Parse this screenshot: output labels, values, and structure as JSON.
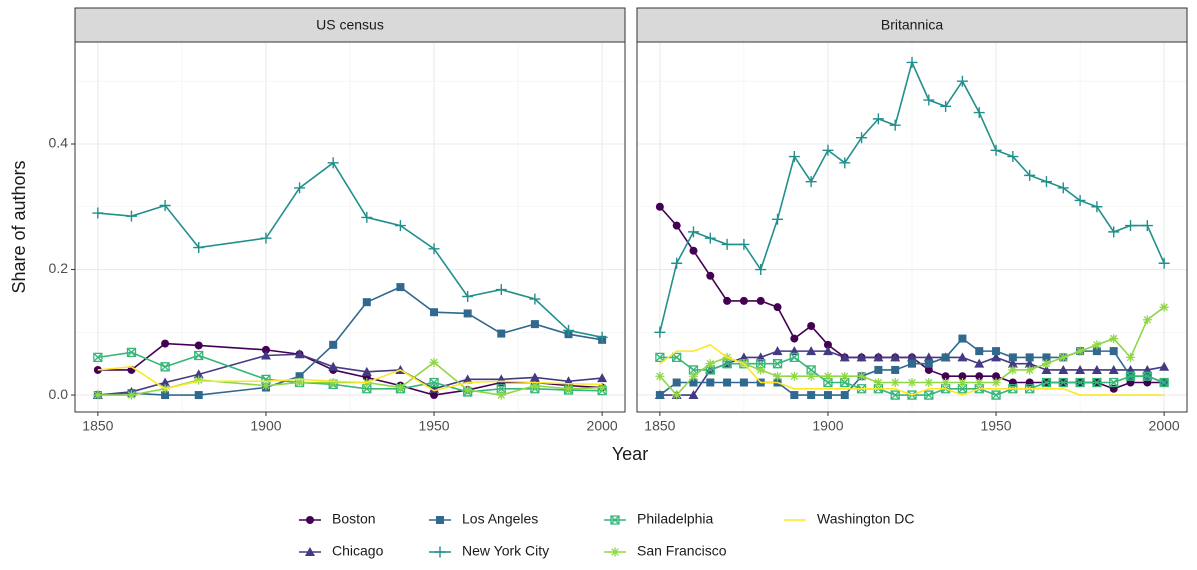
{
  "chart_data": {
    "type": "line",
    "xlabel": "Year",
    "ylabel": "Share of authors",
    "xlim": [
      1843.2,
      2006.8
    ],
    "ylim": [
      -0.027,
      0.5625
    ],
    "xticks": [
      1850,
      1900,
      1950,
      2000
    ],
    "xminorticks": [
      1875,
      1925,
      1975
    ],
    "yticks": [
      {
        "value": 0,
        "label": "0.0"
      },
      0.2,
      0.4
    ],
    "yminorticks": [
      0.1,
      0.3,
      0.5
    ],
    "grid": true,
    "legend": "bottom",
    "series": [
      {
        "name": "Boston",
        "color": "#440154",
        "marker": "circle"
      },
      {
        "name": "Chicago",
        "color": "#443a83",
        "marker": "triangle"
      },
      {
        "name": "Los Angeles",
        "color": "#31688e",
        "marker": "square"
      },
      {
        "name": "New York City",
        "color": "#21908c",
        "marker": "plus"
      },
      {
        "name": "Philadelphia",
        "color": "#35b779",
        "marker": "squarex"
      },
      {
        "name": "San Francisco",
        "color": "#8fd744",
        "marker": "asterisk"
      },
      {
        "name": "Washington DC",
        "color": "#fde725",
        "marker": "none"
      }
    ],
    "panels": [
      {
        "title": "US census",
        "x": [
          1850,
          1860,
          1870,
          1880,
          1900,
          1910,
          1920,
          1930,
          1940,
          1950,
          1960,
          1970,
          1980,
          1990,
          2000
        ],
        "values": [
          [
            0.04,
            0.04,
            0.082,
            0.079,
            0.072,
            0.065,
            0.04,
            0.028,
            0.015,
            0.0,
            0.008,
            0.02,
            0.02,
            0.015,
            0.012
          ],
          [
            0,
            0.005,
            0.02,
            0.033,
            0.063,
            0.065,
            0.045,
            0.037,
            0.04,
            0.01,
            0.025,
            0.025,
            0.028,
            0.022,
            0.027
          ],
          [
            0,
            0.003,
            0,
            0,
            0.012,
            0.03,
            0.08,
            0.148,
            0.172,
            0.132,
            0.13,
            0.098,
            0.113,
            0.097,
            0.088
          ],
          [
            0.29,
            0.285,
            0.302,
            0.235,
            0.25,
            0.33,
            0.37,
            0.283,
            0.27,
            0.233,
            0.157,
            0.168,
            0.153,
            0.103,
            0.092
          ],
          [
            0.06,
            0.068,
            0.045,
            0.063,
            0.025,
            0.02,
            0.017,
            0.01,
            0.01,
            0.02,
            0.005,
            0.01,
            0.01,
            0.008,
            0.007
          ],
          [
            0,
            0,
            0.01,
            0.024,
            0.015,
            0.02,
            0.02,
            0.02,
            0.012,
            0.052,
            0.008,
            0,
            0.015,
            0.01,
            0.012
          ],
          [
            0.04,
            0.045,
            0.01,
            0.022,
            0.022,
            0.025,
            0.022,
            0.02,
            0.04,
            0.007,
            0.02,
            0.022,
            0.02,
            0.018,
            0.017
          ]
        ]
      },
      {
        "title": "Britannica",
        "x": [
          1850,
          1855,
          1860,
          1865,
          1870,
          1875,
          1880,
          1885,
          1890,
          1895,
          1900,
          1905,
          1910,
          1915,
          1920,
          1925,
          1930,
          1935,
          1940,
          1945,
          1950,
          1955,
          1960,
          1965,
          1970,
          1975,
          1980,
          1985,
          1990,
          1995,
          2000
        ],
        "values": [
          [
            0.3,
            0.27,
            0.23,
            0.19,
            0.15,
            0.15,
            0.15,
            0.14,
            0.09,
            0.11,
            0.08,
            0.06,
            0.06,
            0.06,
            0.06,
            0.06,
            0.04,
            0.03,
            0.03,
            0.03,
            0.03,
            0.02,
            0.02,
            0.02,
            0.02,
            0.02,
            0.02,
            0.01,
            0.02,
            0.02,
            0.02
          ],
          [
            0,
            0,
            0,
            0.04,
            0.05,
            0.06,
            0.06,
            0.07,
            0.07,
            0.07,
            0.07,
            0.06,
            0.06,
            0.06,
            0.06,
            0.06,
            0.06,
            0.06,
            0.06,
            0.05,
            0.06,
            0.05,
            0.05,
            0.04,
            0.04,
            0.04,
            0.04,
            0.04,
            0.04,
            0.04,
            0.045
          ],
          [
            0,
            0.02,
            0.02,
            0.02,
            0.02,
            0.02,
            0.02,
            0.02,
            0,
            0,
            0,
            0,
            0.03,
            0.04,
            0.04,
            0.05,
            0.05,
            0.06,
            0.09,
            0.07,
            0.07,
            0.06,
            0.06,
            0.06,
            0.06,
            0.07,
            0.07,
            0.07,
            0.03,
            0.03,
            0.02
          ],
          [
            0.1,
            0.21,
            0.26,
            0.25,
            0.24,
            0.24,
            0.2,
            0.28,
            0.38,
            0.34,
            0.39,
            0.37,
            0.41,
            0.44,
            0.43,
            0.53,
            0.47,
            0.46,
            0.5,
            0.45,
            0.39,
            0.38,
            0.35,
            0.34,
            0.33,
            0.31,
            0.3,
            0.26,
            0.27,
            0.27,
            0.21
          ],
          [
            0.06,
            0.06,
            0.04,
            0.04,
            0.05,
            0.05,
            0.05,
            0.05,
            0.06,
            0.04,
            0.02,
            0.02,
            0.01,
            0.01,
            0,
            0,
            0,
            0.01,
            0.01,
            0.01,
            0,
            0.01,
            0.01,
            0.02,
            0.02,
            0.02,
            0.02,
            0.02,
            0.03,
            0.03,
            0.02
          ],
          [
            0.03,
            0,
            0.03,
            0.05,
            0.06,
            0.05,
            0.04,
            0.03,
            0.03,
            0.03,
            0.03,
            0.03,
            0.03,
            0.02,
            0.02,
            0.02,
            0.02,
            0.02,
            0.02,
            0.02,
            0.02,
            0.04,
            0.04,
            0.05,
            0.06,
            0.07,
            0.08,
            0.09,
            0.06,
            0.12,
            0.14
          ],
          [
            0.05,
            0.07,
            0.07,
            0.08,
            0.06,
            0.05,
            0.02,
            0.02,
            0.01,
            0.01,
            0.01,
            0.01,
            0.01,
            0.01,
            0.01,
            0,
            0.01,
            0.01,
            0,
            0.01,
            0.01,
            0.01,
            0.01,
            0.01,
            0.01,
            0,
            0,
            0,
            0,
            0,
            0
          ]
        ]
      }
    ]
  }
}
